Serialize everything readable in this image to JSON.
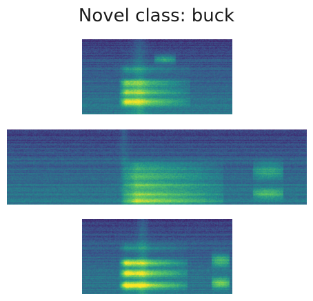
{
  "title": "Novel class: buck",
  "colormap": "viridis",
  "colors": {
    "low": "#440154",
    "mid": "#31688e",
    "high": "#fde725"
  },
  "spectrograms": [
    {
      "label": "",
      "description": "short spectrogram (top)"
    },
    {
      "label": "",
      "description": "long spectrogram (middle)"
    },
    {
      "label": "",
      "description": "short spectrogram (bottom)"
    }
  ]
}
